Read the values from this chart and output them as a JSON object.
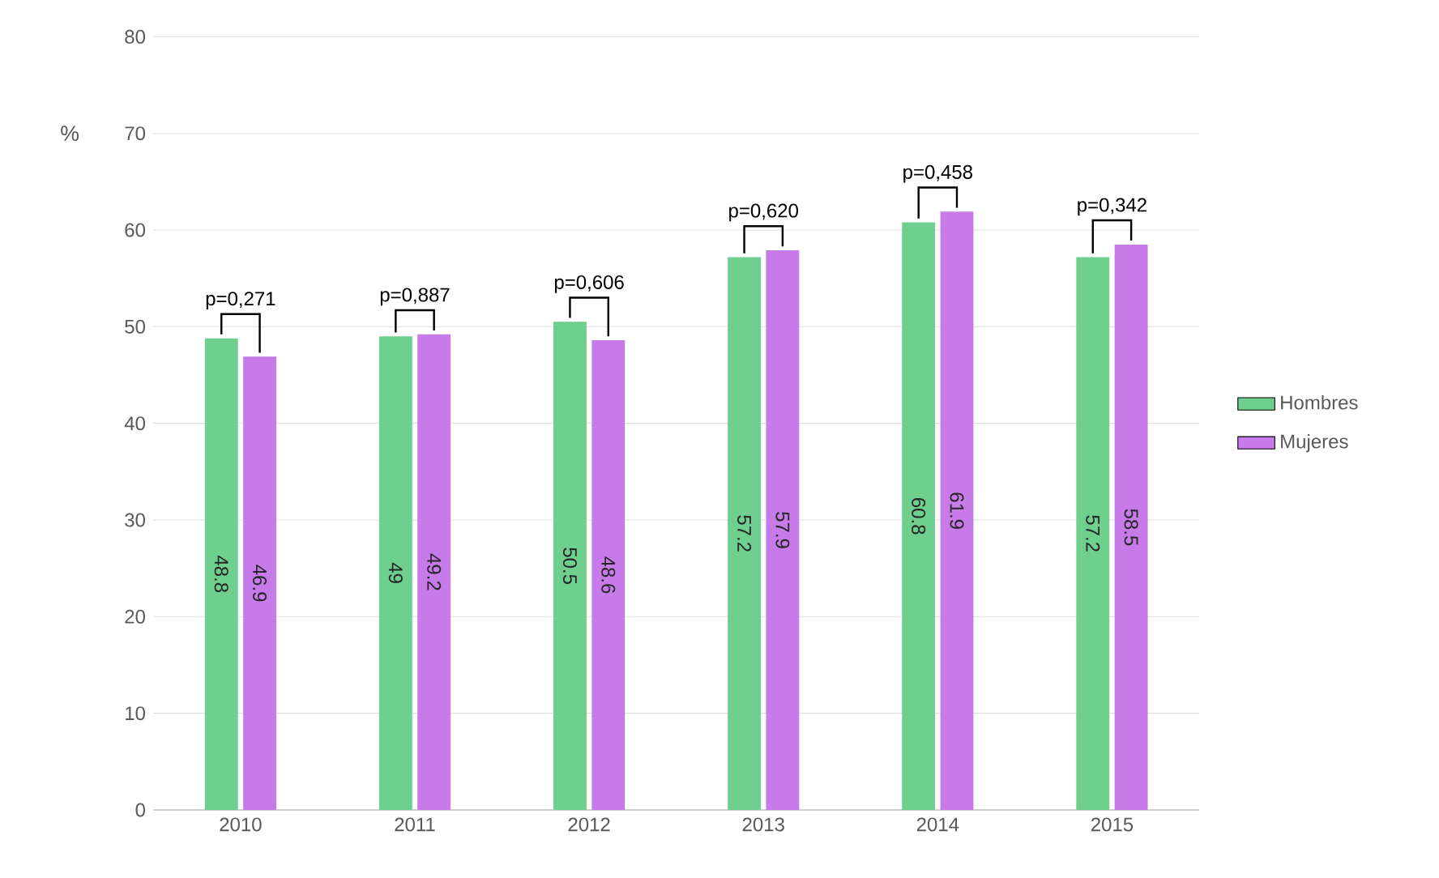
{
  "chart_data": {
    "type": "bar",
    "ylabel": "%",
    "categories": [
      "2010",
      "2011",
      "2012",
      "2013",
      "2014",
      "2015"
    ],
    "series": [
      {
        "name": "Hombres",
        "color": "#6fcf8e",
        "values": [
          48.8,
          49,
          50.5,
          57.2,
          60.8,
          57.2
        ]
      },
      {
        "name": "Mujeres",
        "color": "#c67be8",
        "values": [
          46.9,
          49.2,
          48.6,
          57.9,
          61.9,
          58.5
        ]
      }
    ],
    "ylim": [
      0,
      80
    ],
    "yticks": [
      0,
      10,
      20,
      30,
      40,
      50,
      60,
      70,
      80
    ],
    "grid": "y",
    "legend": "right",
    "data_labels": true,
    "annotations": [
      {
        "text": "p=0,271",
        "x": "2010",
        "y": 48.8
      },
      {
        "text": "p=0,887",
        "x": "2011",
        "y": 49.2
      },
      {
        "text": "p=0,606",
        "x": "2012",
        "y": 50.5
      },
      {
        "text": "p=0,620",
        "x": "2013",
        "y": 57.9
      },
      {
        "text": "p=0,458",
        "x": "2014",
        "y": 61.9
      },
      {
        "text": "p=0,342",
        "x": "2015",
        "y": 58.5
      }
    ]
  }
}
